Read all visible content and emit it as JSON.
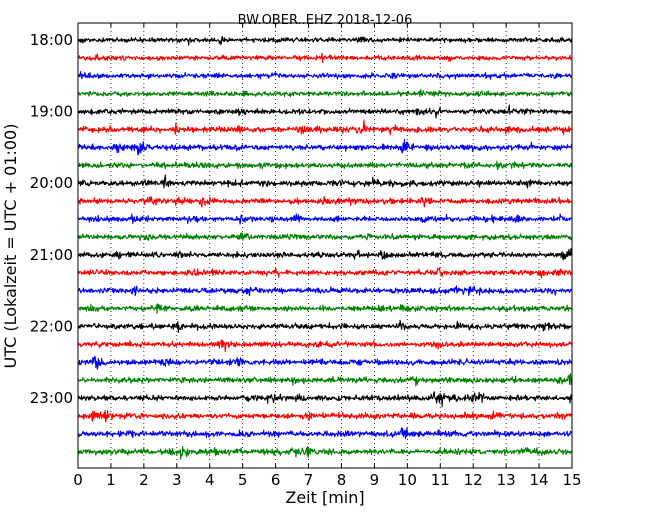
{
  "chart_data": {
    "type": "line",
    "title": "BW.OBER..EHZ 2018-12-06",
    "xlabel": "Zeit  [min]",
    "ylabel": "UTC (Lokalzeit = UTC + 01:00)",
    "xlim": [
      0,
      15
    ],
    "x_ticks": [
      "0",
      "1",
      "2",
      "3",
      "4",
      "5",
      "6",
      "7",
      "8",
      "9",
      "10",
      "11",
      "12",
      "13",
      "14",
      "15"
    ],
    "y_ticks": [
      "18:00",
      "19:00",
      "20:00",
      "21:00",
      "22:00",
      "23:00"
    ],
    "grid": "vertical dotted",
    "trace_interval_min": 15,
    "trace_colors": [
      "#000000",
      "#ff0000",
      "#0000ff",
      "#008000"
    ],
    "traces": [
      {
        "start": "18:00",
        "color": "#000000",
        "amplitude": 0.35
      },
      {
        "start": "18:15",
        "color": "#ff0000",
        "amplitude": 0.35
      },
      {
        "start": "18:30",
        "color": "#0000ff",
        "amplitude": 0.35
      },
      {
        "start": "18:45",
        "color": "#008000",
        "amplitude": 0.35
      },
      {
        "start": "19:00",
        "color": "#000000",
        "amplitude": 0.5
      },
      {
        "start": "19:15",
        "color": "#ff0000",
        "amplitude": 0.7
      },
      {
        "start": "19:30",
        "color": "#0000ff",
        "amplitude": 0.6
      },
      {
        "start": "19:45",
        "color": "#008000",
        "amplitude": 0.55
      },
      {
        "start": "20:00",
        "color": "#000000",
        "amplitude": 0.6
      },
      {
        "start": "20:15",
        "color": "#ff0000",
        "amplitude": 0.55
      },
      {
        "start": "20:30",
        "color": "#0000ff",
        "amplitude": 0.55
      },
      {
        "start": "20:45",
        "color": "#008000",
        "amplitude": 0.5
      },
      {
        "start": "21:00",
        "color": "#000000",
        "amplitude": 0.5
      },
      {
        "start": "21:15",
        "color": "#ff0000",
        "amplitude": 0.55
      },
      {
        "start": "21:30",
        "color": "#0000ff",
        "amplitude": 0.55
      },
      {
        "start": "21:45",
        "color": "#008000",
        "amplitude": 0.5
      },
      {
        "start": "22:00",
        "color": "#000000",
        "amplitude": 0.55
      },
      {
        "start": "22:15",
        "color": "#ff0000",
        "amplitude": 0.55
      },
      {
        "start": "22:30",
        "color": "#0000ff",
        "amplitude": 0.6
      },
      {
        "start": "22:45",
        "color": "#008000",
        "amplitude": 0.6
      },
      {
        "start": "23:00",
        "color": "#000000",
        "amplitude": 0.65
      },
      {
        "start": "23:15",
        "color": "#ff0000",
        "amplitude": 0.65
      },
      {
        "start": "23:30",
        "color": "#0000ff",
        "amplitude": 0.65
      },
      {
        "start": "23:45",
        "color": "#008000",
        "amplitude": 0.7
      }
    ]
  }
}
